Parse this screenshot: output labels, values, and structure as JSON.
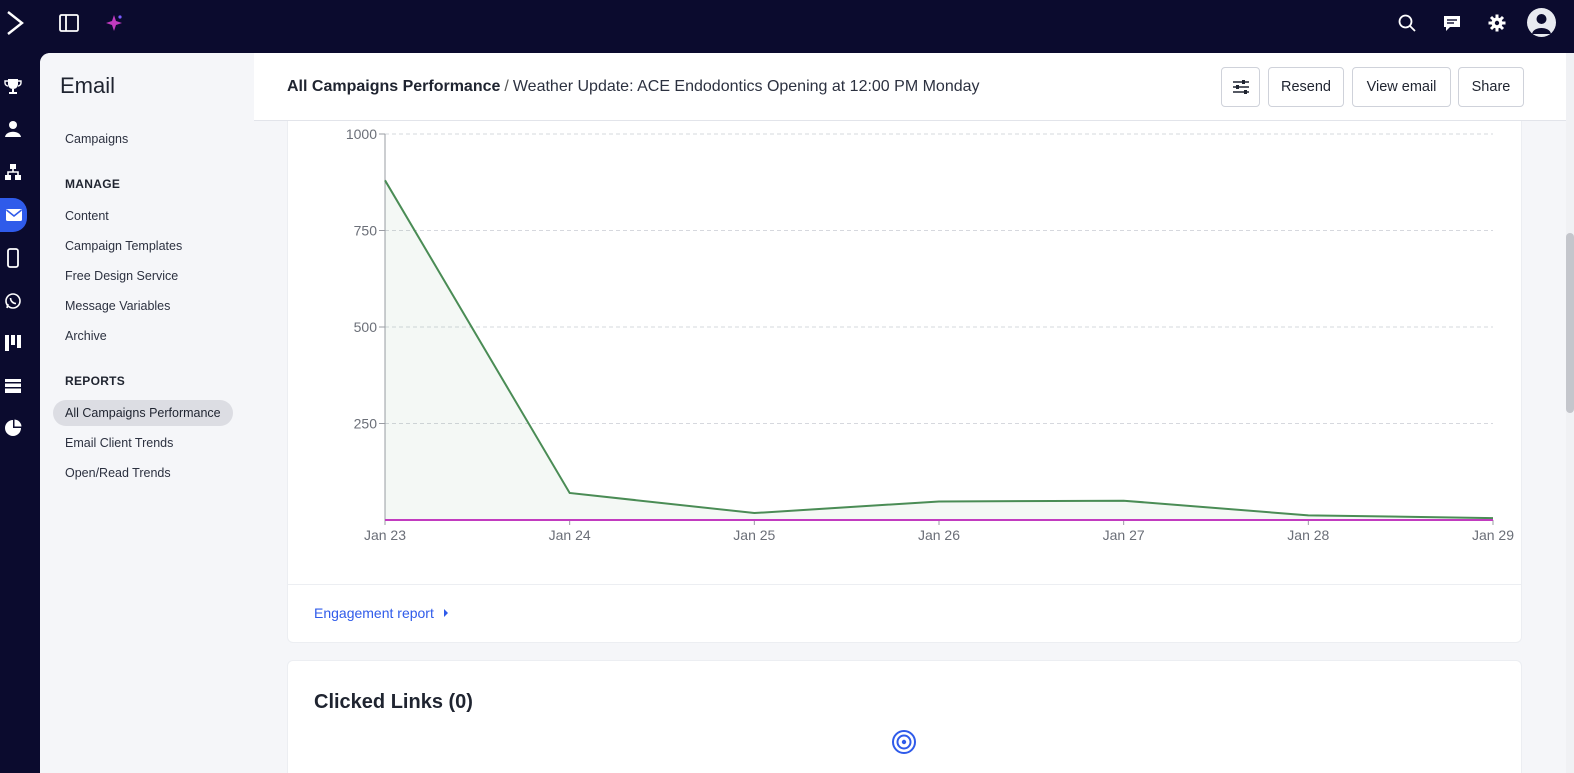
{
  "topbar": {
    "icons": [
      "logo-chevron",
      "sidebar-toggle",
      "ai-sparkle",
      "search",
      "chat",
      "gear",
      "avatar"
    ]
  },
  "rail": {
    "icons": [
      "trophy",
      "contacts",
      "automations",
      "email",
      "sms",
      "whatsapp",
      "deals",
      "site",
      "reports"
    ],
    "active": "email"
  },
  "nav": {
    "title": "Email",
    "campaigns": "Campaigns",
    "manage_heading": "MANAGE",
    "manage_items": [
      "Content",
      "Campaign Templates",
      "Free Design Service",
      "Message Variables",
      "Archive"
    ],
    "reports_heading": "REPORTS",
    "report_items": [
      "All Campaigns Performance",
      "Email Client Trends",
      "Open/Read Trends"
    ],
    "active_item": "All Campaigns Performance"
  },
  "header": {
    "breadcrumb_parent": "All Campaigns Performance",
    "breadcrumb_separator": "/",
    "breadcrumb_current": "Weather Update: ACE Endodontics Opening at 12:00 PM Monday",
    "resend_label": "Resend",
    "view_email_label": "View email",
    "share_label": "Share"
  },
  "engagement_link": "Engagement report",
  "clicked_links_title": "Clicked Links (0)",
  "colors": {
    "accent": "#2f5bea",
    "series_green": "#4a8c55",
    "series_magenta": "#c23bbf",
    "dark_bg": "#0b0b2e"
  },
  "chart_data": {
    "type": "line",
    "categories": [
      "Jan 23",
      "Jan 24",
      "Jan 25",
      "Jan 26",
      "Jan 27",
      "Jan 28",
      "Jan 29"
    ],
    "series": [
      {
        "values": [
          880,
          70,
          18,
          48,
          50,
          12,
          5
        ],
        "color": "#4a8c55",
        "fill": true
      },
      {
        "values": [
          0,
          0,
          0,
          0,
          0,
          0,
          0
        ],
        "color": "#c23bbf",
        "fill": false
      }
    ],
    "yticks": [
      "250",
      "500",
      "750",
      "1000"
    ],
    "ylim": [
      0,
      1000
    ],
    "grid": true
  }
}
